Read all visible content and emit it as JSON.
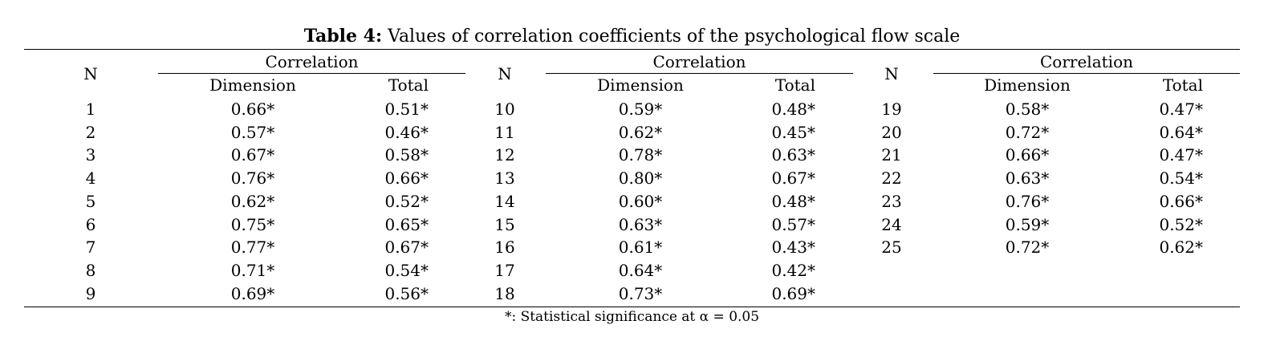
{
  "table": {
    "title_label": "Table 4:",
    "title_text": " Values of correlation coefficients of the psychological flow scale",
    "headers": {
      "n": "N",
      "correlation": "Correlation",
      "dimension": "Dimension",
      "total": "Total"
    },
    "groups": [
      {
        "rows": [
          {
            "n": "1",
            "dimension": "0.66*",
            "total": "0.51*"
          },
          {
            "n": "2",
            "dimension": "0.57*",
            "total": "0.46*"
          },
          {
            "n": "3",
            "dimension": "0.67*",
            "total": "0.58*"
          },
          {
            "n": "4",
            "dimension": "0.76*",
            "total": "0.66*"
          },
          {
            "n": "5",
            "dimension": "0.62*",
            "total": "0.52*"
          },
          {
            "n": "6",
            "dimension": "0.75*",
            "total": "0.65*"
          },
          {
            "n": "7",
            "dimension": "0.77*",
            "total": "0.67*"
          },
          {
            "n": "8",
            "dimension": "0.71*",
            "total": "0.54*"
          },
          {
            "n": "9",
            "dimension": "0.69*",
            "total": "0.56*"
          }
        ]
      },
      {
        "rows": [
          {
            "n": "10",
            "dimension": "0.59*",
            "total": "0.48*"
          },
          {
            "n": "11",
            "dimension": "0.62*",
            "total": "0.45*"
          },
          {
            "n": "12",
            "dimension": "0.78*",
            "total": "0.63*"
          },
          {
            "n": "13",
            "dimension": "0.80*",
            "total": "0.67*"
          },
          {
            "n": "14",
            "dimension": "0.60*",
            "total": "0.48*"
          },
          {
            "n": "15",
            "dimension": "0.63*",
            "total": "0.57*"
          },
          {
            "n": "16",
            "dimension": "0.61*",
            "total": "0.43*"
          },
          {
            "n": "17",
            "dimension": "0.64*",
            "total": "0.42*"
          },
          {
            "n": "18",
            "dimension": "0.73*",
            "total": "0.69*"
          }
        ]
      },
      {
        "rows": [
          {
            "n": "19",
            "dimension": "0.58*",
            "total": "0.47*"
          },
          {
            "n": "20",
            "dimension": "0.72*",
            "total": "0.64*"
          },
          {
            "n": "21",
            "dimension": "0.66*",
            "total": "0.47*"
          },
          {
            "n": "22",
            "dimension": "0.63*",
            "total": "0.54*"
          },
          {
            "n": "23",
            "dimension": "0.76*",
            "total": "0.66*"
          },
          {
            "n": "24",
            "dimension": "0.59*",
            "total": "0.52*"
          },
          {
            "n": "25",
            "dimension": "0.72*",
            "total": "0.62*"
          }
        ]
      }
    ],
    "footnote": "*: Statistical significance at α = 0.05"
  }
}
